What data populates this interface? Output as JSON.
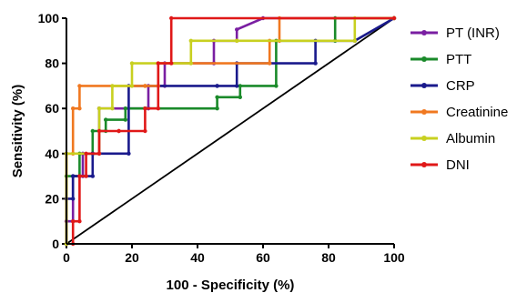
{
  "chart_data": {
    "type": "line",
    "title": "",
    "xlabel": "100 - Specificity (%)",
    "ylabel": "Sensitivity (%)",
    "xlim": [
      0,
      100
    ],
    "ylim": [
      0,
      100
    ],
    "x_ticks": [
      "0",
      "20",
      "40",
      "60",
      "80",
      "100"
    ],
    "y_ticks": [
      "0",
      "20",
      "40",
      "60",
      "80",
      "100"
    ],
    "legend_position": "right",
    "reference_line": {
      "from": [
        0,
        0
      ],
      "to": [
        100,
        100
      ],
      "color": "#000000"
    },
    "series": [
      {
        "name": "PT (INR)",
        "color": "#7a1fa2",
        "x": [
          0,
          0,
          2,
          2,
          5,
          5,
          10,
          10,
          25,
          25,
          30,
          30,
          45,
          45,
          52,
          52,
          60,
          100
        ],
        "y": [
          0,
          10,
          10,
          30,
          30,
          40,
          40,
          60,
          60,
          70,
          70,
          80,
          80,
          90,
          90,
          95,
          100,
          100
        ]
      },
      {
        "name": "PTT",
        "color": "#1a8a2a",
        "x": [
          0,
          0,
          4,
          4,
          8,
          8,
          12,
          12,
          18,
          18,
          24,
          24,
          46,
          46,
          53,
          53,
          64,
          64,
          82,
          82,
          100
        ],
        "y": [
          0,
          30,
          30,
          40,
          40,
          50,
          50,
          55,
          55,
          60,
          60,
          60,
          60,
          65,
          65,
          70,
          70,
          90,
          90,
          100,
          100
        ]
      },
      {
        "name": "CRP",
        "color": "#1a1a8c",
        "x": [
          0,
          0,
          2,
          2,
          8,
          8,
          19,
          19,
          46,
          46,
          52,
          52,
          76,
          76,
          88,
          100
        ],
        "y": [
          0,
          20,
          20,
          30,
          30,
          40,
          40,
          70,
          70,
          70,
          70,
          80,
          80,
          90,
          90,
          100
        ]
      },
      {
        "name": "Creatinine",
        "color": "#f07820",
        "x": [
          0,
          0,
          2,
          2,
          4,
          4,
          24,
          24,
          28,
          28,
          62,
          62,
          65,
          65,
          100
        ],
        "y": [
          0,
          40,
          40,
          60,
          60,
          70,
          70,
          70,
          70,
          80,
          80,
          90,
          90,
          100,
          100
        ]
      },
      {
        "name": "Albumin",
        "color": "#c8d020",
        "x": [
          0,
          0,
          10,
          10,
          14,
          14,
          20,
          20,
          38,
          38,
          52,
          52,
          88,
          88,
          100
        ],
        "y": [
          0,
          40,
          40,
          60,
          60,
          70,
          70,
          80,
          80,
          90,
          90,
          90,
          90,
          100,
          100
        ]
      },
      {
        "name": "DNI",
        "color": "#e01818",
        "x": [
          2,
          2,
          4,
          4,
          6,
          6,
          10,
          10,
          16,
          16,
          24,
          24,
          28,
          28,
          32,
          32,
          100
        ],
        "y": [
          0,
          10,
          10,
          30,
          30,
          40,
          40,
          50,
          50,
          50,
          50,
          60,
          60,
          80,
          80,
          100,
          100
        ]
      }
    ]
  }
}
